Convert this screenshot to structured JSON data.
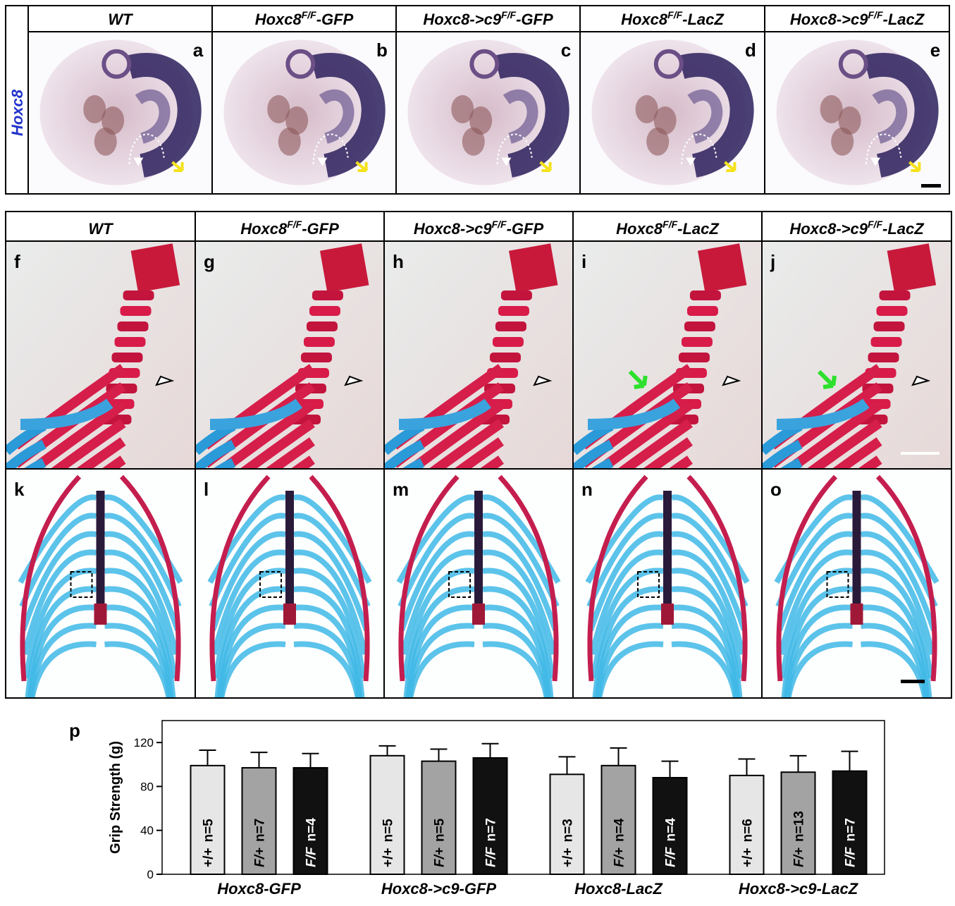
{
  "top_row": {
    "side_label": "Hoxc8",
    "headers": [
      {
        "text": "WT"
      },
      {
        "text": "Hoxc8",
        "sup": "F/F",
        "suffix": "-GFP"
      },
      {
        "text": "Hoxc8->c9",
        "sup": "F/F",
        "suffix": "-GFP"
      },
      {
        "text": "Hoxc8",
        "sup": "F/F",
        "suffix": "-LacZ"
      },
      {
        "text": "Hoxc8->c9",
        "sup": "F/F",
        "suffix": "-LacZ"
      }
    ],
    "letters": [
      "a",
      "b",
      "c",
      "d",
      "e"
    ]
  },
  "middle_rows": {
    "headers": [
      {
        "text": "WT"
      },
      {
        "text": "Hoxc8",
        "sup": "F/F",
        "suffix": "-GFP"
      },
      {
        "text": "Hoxc8->c9",
        "sup": "F/F",
        "suffix": "-GFP"
      },
      {
        "text": "Hoxc8",
        "sup": "F/F",
        "suffix": "-LacZ"
      },
      {
        "text": "Hoxc8->c9",
        "sup": "F/F",
        "suffix": "-LacZ"
      }
    ],
    "letters_upper": [
      "f",
      "g",
      "h",
      "i",
      "j"
    ],
    "letters_lower": [
      "k",
      "l",
      "m",
      "n",
      "o"
    ]
  },
  "chart_data": {
    "type": "bar",
    "panel_label": "p",
    "ylabel": "Grip Strength (g)",
    "categories": [
      "Hoxc8-GFP",
      "Hoxc8->c9-GFP",
      "Hoxc8-LacZ",
      "Hoxc8->c9-LacZ"
    ],
    "ylim": [
      0,
      140
    ],
    "yticks": [
      0,
      40,
      80,
      120
    ],
    "series": [
      {
        "name": "+/+",
        "color": "#e6e6e6",
        "values": [
          99,
          108,
          91,
          90
        ],
        "errors": [
          14,
          9,
          16,
          15
        ],
        "labels": [
          "n=5",
          "n=5",
          "n=3",
          "n=6"
        ]
      },
      {
        "name": "F/+",
        "color": "#a3a3a3",
        "values": [
          97,
          103,
          99,
          93
        ],
        "errors": [
          14,
          11,
          16,
          15
        ],
        "labels": [
          "n=7",
          "n=5",
          "n=4",
          "n=13"
        ]
      },
      {
        "name": "F/F",
        "color": "#111111",
        "values": [
          97,
          106,
          88,
          94
        ],
        "errors": [
          13,
          13,
          15,
          18
        ],
        "labels": [
          "n=4",
          "n=7",
          "n=4",
          "n=7"
        ]
      }
    ]
  }
}
